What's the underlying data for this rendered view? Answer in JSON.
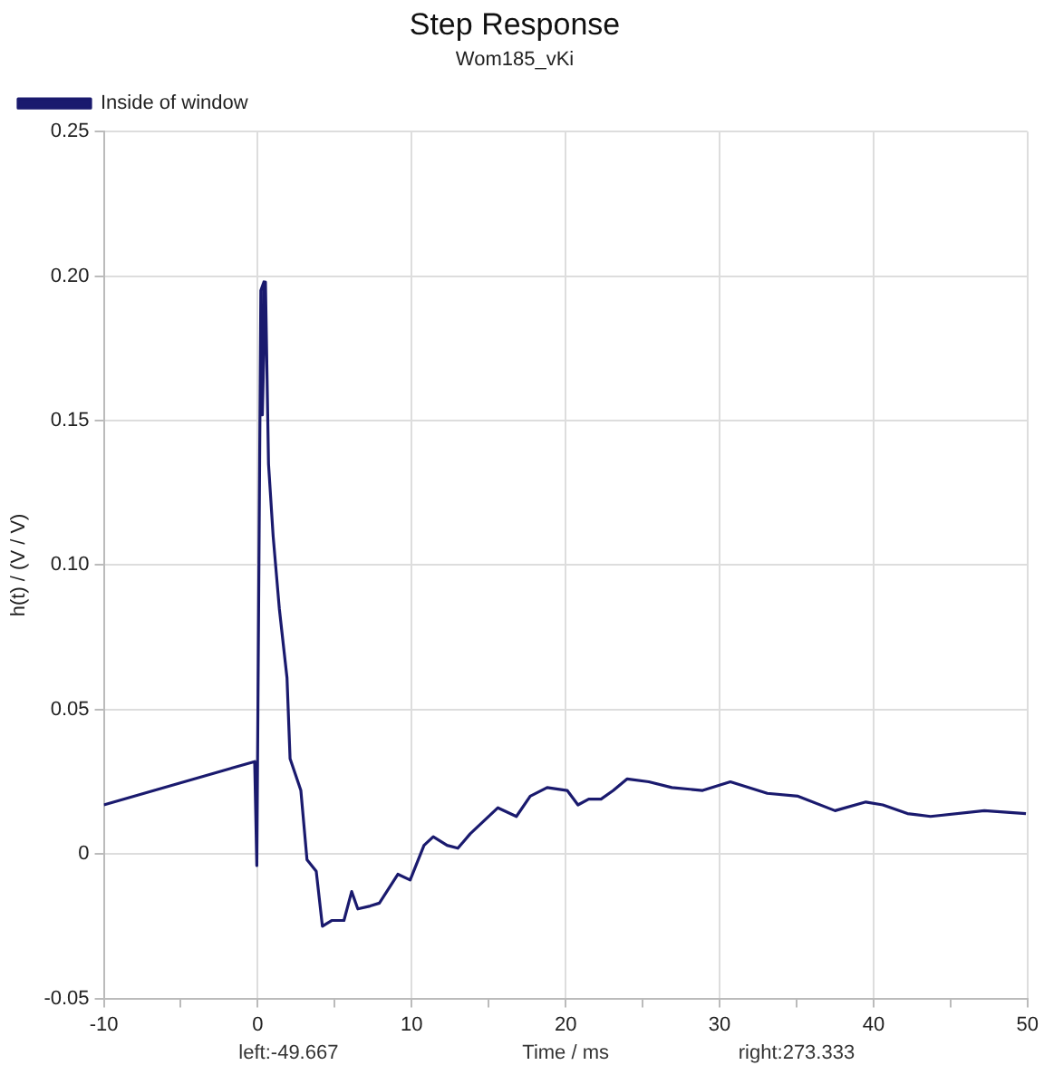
{
  "chart_data": {
    "type": "line",
    "title": "Step Response",
    "subtitle": "Wom185_vKi",
    "xlabel": "Time / ms",
    "ylabel": "h(t) / (V / V)",
    "annotations": [
      "left:-49.667",
      "right:273.333"
    ],
    "x": [
      -10,
      -0.2,
      -0.06,
      0.2,
      0.4,
      0.3,
      0.5,
      0.7,
      1.0,
      1.4,
      1.9,
      2.1,
      2.8,
      3.2,
      3.8,
      4.2,
      4.8,
      5.6,
      6.1,
      6.5,
      7.3,
      7.9,
      9.1,
      9.9,
      10.8,
      11.4,
      12.3,
      13.0,
      13.8,
      15.6,
      16.8,
      17.7,
      18.8,
      20.1,
      20.8,
      21.5,
      22.3,
      23.1,
      24.0,
      25.4,
      26.9,
      28.9,
      30.7,
      33.1,
      35.1,
      37.5,
      39.5,
      40.6,
      42.2,
      43.7,
      47.2,
      49.9
    ],
    "series": [
      {
        "name": "Inside of window",
        "color": "#1a1a6e",
        "values": [
          0.017,
          0.032,
          -0.004,
          0.195,
          0.198,
          0.152,
          0.198,
          0.135,
          0.11,
          0.085,
          0.061,
          0.033,
          0.022,
          -0.002,
          -0.006,
          -0.025,
          -0.023,
          -0.023,
          -0.013,
          -0.019,
          -0.018,
          -0.017,
          -0.007,
          -0.009,
          0.003,
          0.006,
          0.003,
          0.002,
          0.007,
          0.016,
          0.013,
          0.02,
          0.023,
          0.022,
          0.017,
          0.019,
          0.019,
          0.022,
          0.026,
          0.025,
          0.023,
          0.022,
          0.025,
          0.021,
          0.02,
          0.015,
          0.018,
          0.017,
          0.014,
          0.013,
          0.015,
          0.014
        ]
      }
    ],
    "xlim": [
      -10,
      50
    ],
    "xticks": [
      -10,
      {
        "value": -5,
        "label": null
      },
      0,
      {
        "value": 5,
        "label": null
      },
      10,
      {
        "value": 15,
        "label": null
      },
      20,
      {
        "value": 25,
        "label": null
      },
      30,
      {
        "value": 35,
        "label": null
      },
      40,
      {
        "value": 45,
        "label": null
      },
      50
    ],
    "ylim": [
      -0.05,
      0.25
    ],
    "yticks": [
      {
        "value": -0.05,
        "label": "-0.05"
      },
      {
        "value": 0,
        "label": "0"
      },
      {
        "value": 0.05,
        "label": "0.05"
      },
      {
        "value": 0.1,
        "label": "0.10"
      },
      {
        "value": 0.15,
        "label": "0.15"
      },
      {
        "value": 0.2,
        "label": "0.20"
      },
      {
        "value": 0.25,
        "label": "0.25"
      }
    ],
    "grid": true,
    "legend": "top left",
    "marker": "none",
    "line_style": "solid"
  }
}
